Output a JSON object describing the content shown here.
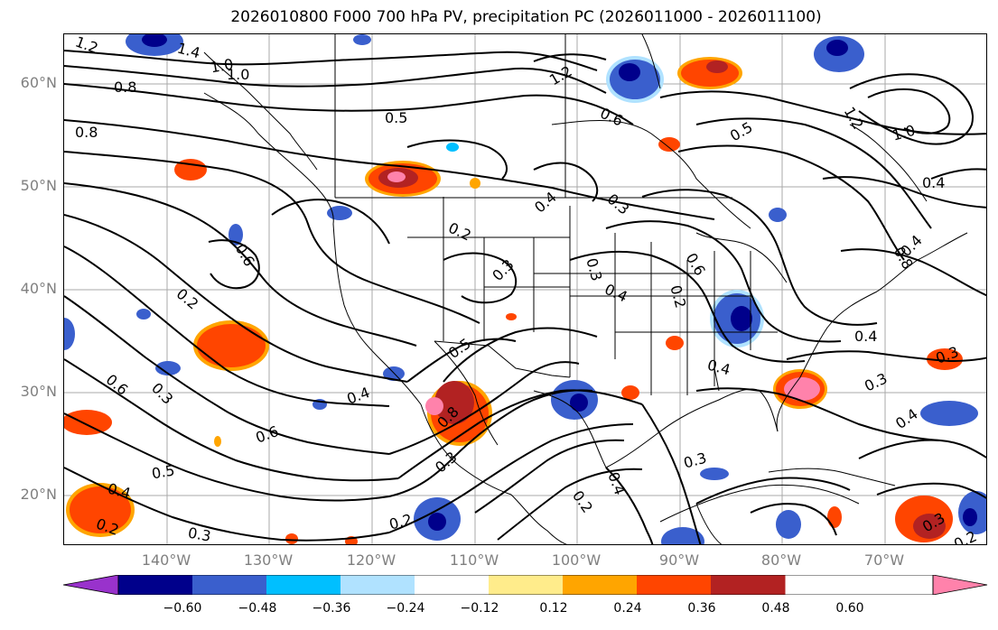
{
  "title": "2026010800 F000 700 hPa PV, precipitation PC (2026011000 - 2026011100)",
  "lat_labels": [
    "60°N",
    "50°N",
    "40°N",
    "30°N",
    "20°N"
  ],
  "lon_labels": [
    "140°W",
    "130°W",
    "120°W",
    "110°W",
    "100°W",
    "90°W",
    "80°W",
    "70°W"
  ],
  "map": {
    "extent": {
      "lon_min": -152,
      "lon_max": -62,
      "lat_min": 15,
      "lat_max": 65
    },
    "contour_labels": [
      "1.2",
      "1.4",
      "1.0",
      "0.8",
      "0.8",
      "0.5",
      "0.6",
      "1.2",
      "1.0",
      "0.5",
      "1.2",
      "1.0",
      "0.6",
      "0.4",
      "0.4",
      "0.3",
      "0.2",
      "0.3",
      "0.3",
      "0.4",
      "0.2",
      "0.6",
      "0.2",
      "0.6",
      "0.3",
      "0.4",
      "0.6",
      "0.5",
      "0.4",
      "0.2",
      "0.3",
      "0.5",
      "0.8",
      "0.3",
      "0.4",
      "0.4",
      "0.4",
      "0.3",
      "0.3",
      "0.3",
      "0.4",
      "0.2",
      "0.4",
      "0.2",
      "0.3",
      "0.2",
      "0.8"
    ]
  },
  "colorbar": {
    "ticks": [
      "−0.60",
      "−0.48",
      "−0.36",
      "−0.24",
      "−0.12",
      "0.12",
      "0.24",
      "0.36",
      "0.48",
      "0.60"
    ],
    "colors": [
      "#9932cc",
      "#00008b",
      "#3a5fcd",
      "#00bfff",
      "#b0e2ff",
      "#ffffff",
      "#ffec8b",
      "#ffa500",
      "#ff4500",
      "#b22222",
      "#ff82ab"
    ]
  }
}
